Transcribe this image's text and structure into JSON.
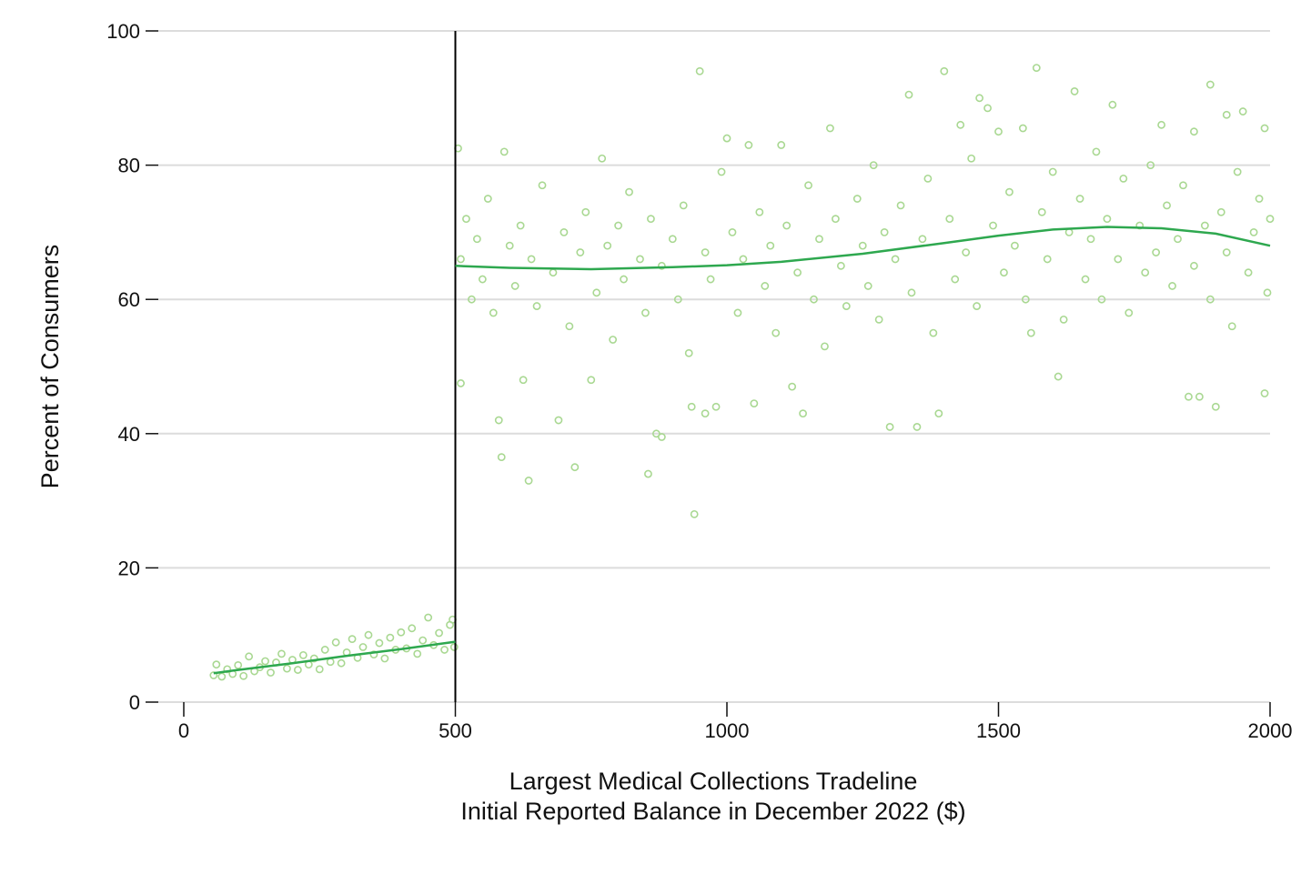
{
  "chart_data": {
    "type": "scatter",
    "title": "",
    "xlabel": "Largest Medical Collections Tradeline",
    "xlabel2": "Initial Reported Balance in December 2022 ($)",
    "ylabel": "Percent of Consumers",
    "xlim": [
      0,
      2000
    ],
    "ylim": [
      0,
      100
    ],
    "xticks": [
      "0",
      "500",
      "1000",
      "1500",
      "2000"
    ],
    "yticks": [
      "0",
      "20",
      "40",
      "60",
      "80",
      "100"
    ],
    "grid": "horizontal",
    "cutoff": 500,
    "colors": {
      "points": "#a9d892",
      "fit": "#2ea84f",
      "cutoff": "#000000",
      "grid": "#dcdcdc"
    },
    "fit_left": [
      [
        55,
        4.3
      ],
      [
        100,
        4.8
      ],
      [
        200,
        5.8
      ],
      [
        300,
        6.9
      ],
      [
        400,
        7.9
      ],
      [
        500,
        9.0
      ]
    ],
    "fit_right": [
      [
        500,
        65.0
      ],
      [
        600,
        64.7
      ],
      [
        750,
        64.5
      ],
      [
        900,
        64.8
      ],
      [
        1000,
        65.1
      ],
      [
        1100,
        65.6
      ],
      [
        1250,
        66.8
      ],
      [
        1400,
        68.4
      ],
      [
        1500,
        69.5
      ],
      [
        1600,
        70.4
      ],
      [
        1700,
        70.8
      ],
      [
        1800,
        70.6
      ],
      [
        1900,
        69.8
      ],
      [
        2000,
        68.0
      ]
    ],
    "points": [
      [
        55,
        4.0
      ],
      [
        60,
        5.6
      ],
      [
        70,
        3.8
      ],
      [
        80,
        4.9
      ],
      [
        90,
        4.2
      ],
      [
        100,
        5.5
      ],
      [
        110,
        3.9
      ],
      [
        120,
        6.8
      ],
      [
        130,
        4.6
      ],
      [
        140,
        5.2
      ],
      [
        150,
        6.1
      ],
      [
        160,
        4.4
      ],
      [
        170,
        5.9
      ],
      [
        180,
        7.2
      ],
      [
        190,
        5.0
      ],
      [
        200,
        6.3
      ],
      [
        210,
        4.8
      ],
      [
        220,
        7.0
      ],
      [
        230,
        5.6
      ],
      [
        240,
        6.5
      ],
      [
        250,
        4.9
      ],
      [
        260,
        7.8
      ],
      [
        270,
        6.0
      ],
      [
        280,
        8.9
      ],
      [
        290,
        5.8
      ],
      [
        300,
        7.4
      ],
      [
        310,
        9.4
      ],
      [
        320,
        6.6
      ],
      [
        330,
        8.2
      ],
      [
        340,
        10.0
      ],
      [
        350,
        7.1
      ],
      [
        360,
        8.8
      ],
      [
        370,
        6.5
      ],
      [
        380,
        9.6
      ],
      [
        390,
        7.8
      ],
      [
        400,
        10.4
      ],
      [
        410,
        8.0
      ],
      [
        420,
        11.0
      ],
      [
        430,
        7.2
      ],
      [
        440,
        9.2
      ],
      [
        450,
        12.6
      ],
      [
        460,
        8.5
      ],
      [
        470,
        10.3
      ],
      [
        480,
        7.8
      ],
      [
        490,
        11.5
      ],
      [
        495,
        12.3
      ],
      [
        498,
        8.2
      ],
      [
        505,
        82.5
      ],
      [
        590,
        82
      ],
      [
        770,
        81
      ],
      [
        1000,
        84
      ],
      [
        1040,
        83
      ],
      [
        1100,
        83
      ],
      [
        1190,
        85.5
      ],
      [
        1430,
        86
      ],
      [
        1500,
        85
      ],
      [
        1545,
        85.5
      ],
      [
        1480,
        88.5
      ],
      [
        1800,
        86
      ],
      [
        1920,
        87.5
      ],
      [
        1950,
        88
      ],
      [
        1990,
        85.5
      ],
      [
        1860,
        85
      ],
      [
        950,
        94
      ],
      [
        1400,
        94
      ],
      [
        1570,
        94.5
      ],
      [
        1335,
        90.5
      ],
      [
        1640,
        91
      ],
      [
        1890,
        92
      ],
      [
        1465,
        90
      ],
      [
        1710,
        89
      ],
      [
        940,
        28
      ],
      [
        635,
        33
      ],
      [
        855,
        34
      ],
      [
        585,
        36.5
      ],
      [
        720,
        35
      ],
      [
        580,
        42
      ],
      [
        870,
        40
      ],
      [
        880,
        39.5
      ],
      [
        690,
        42
      ],
      [
        1300,
        41
      ],
      [
        1350,
        41
      ],
      [
        1390,
        43
      ],
      [
        1140,
        43
      ],
      [
        1900,
        44
      ],
      [
        1870,
        45.5
      ],
      [
        1850,
        45.5
      ],
      [
        1990,
        46
      ],
      [
        510,
        47.5
      ],
      [
        935,
        44
      ],
      [
        960,
        43
      ],
      [
        980,
        44
      ],
      [
        1050,
        44.5
      ],
      [
        625,
        48
      ],
      [
        750,
        48
      ],
      [
        1120,
        47
      ],
      [
        1610,
        48.5
      ],
      [
        1560,
        55
      ],
      [
        510,
        66
      ],
      [
        520,
        72
      ],
      [
        530,
        60
      ],
      [
        540,
        69
      ],
      [
        550,
        63
      ],
      [
        560,
        75
      ],
      [
        570,
        58
      ],
      [
        600,
        68
      ],
      [
        610,
        62
      ],
      [
        620,
        71
      ],
      [
        640,
        66
      ],
      [
        650,
        59
      ],
      [
        660,
        77
      ],
      [
        680,
        64
      ],
      [
        700,
        70
      ],
      [
        710,
        56
      ],
      [
        730,
        67
      ],
      [
        740,
        73
      ],
      [
        760,
        61
      ],
      [
        780,
        68
      ],
      [
        790,
        54
      ],
      [
        800,
        71
      ],
      [
        810,
        63
      ],
      [
        820,
        76
      ],
      [
        840,
        66
      ],
      [
        850,
        58
      ],
      [
        860,
        72
      ],
      [
        880,
        65
      ],
      [
        900,
        69
      ],
      [
        910,
        60
      ],
      [
        920,
        74
      ],
      [
        930,
        52
      ],
      [
        960,
        67
      ],
      [
        970,
        63
      ],
      [
        990,
        79
      ],
      [
        1010,
        70
      ],
      [
        1020,
        58
      ],
      [
        1030,
        66
      ],
      [
        1060,
        73
      ],
      [
        1070,
        62
      ],
      [
        1080,
        68
      ],
      [
        1090,
        55
      ],
      [
        1110,
        71
      ],
      [
        1130,
        64
      ],
      [
        1150,
        77
      ],
      [
        1160,
        60
      ],
      [
        1170,
        69
      ],
      [
        1180,
        53
      ],
      [
        1200,
        72
      ],
      [
        1210,
        65
      ],
      [
        1220,
        59
      ],
      [
        1240,
        75
      ],
      [
        1250,
        68
      ],
      [
        1260,
        62
      ],
      [
        1270,
        80
      ],
      [
        1280,
        57
      ],
      [
        1290,
        70
      ],
      [
        1310,
        66
      ],
      [
        1320,
        74
      ],
      [
        1340,
        61
      ],
      [
        1360,
        69
      ],
      [
        1370,
        78
      ],
      [
        1380,
        55
      ],
      [
        1410,
        72
      ],
      [
        1420,
        63
      ],
      [
        1440,
        67
      ],
      [
        1450,
        81
      ],
      [
        1460,
        59
      ],
      [
        1490,
        71
      ],
      [
        1510,
        64
      ],
      [
        1520,
        76
      ],
      [
        1530,
        68
      ],
      [
        1550,
        60
      ],
      [
        1580,
        73
      ],
      [
        1590,
        66
      ],
      [
        1600,
        79
      ],
      [
        1620,
        57
      ],
      [
        1630,
        70
      ],
      [
        1650,
        75
      ],
      [
        1660,
        63
      ],
      [
        1670,
        69
      ],
      [
        1680,
        82
      ],
      [
        1690,
        60
      ],
      [
        1700,
        72
      ],
      [
        1720,
        66
      ],
      [
        1730,
        78
      ],
      [
        1740,
        58
      ],
      [
        1760,
        71
      ],
      [
        1770,
        64
      ],
      [
        1780,
        80
      ],
      [
        1790,
        67
      ],
      [
        1810,
        74
      ],
      [
        1820,
        62
      ],
      [
        1830,
        69
      ],
      [
        1840,
        77
      ],
      [
        1860,
        65
      ],
      [
        1880,
        71
      ],
      [
        1890,
        60
      ],
      [
        1910,
        73
      ],
      [
        1920,
        67
      ],
      [
        1930,
        56
      ],
      [
        1940,
        79
      ],
      [
        1960,
        64
      ],
      [
        1970,
        70
      ],
      [
        1980,
        75
      ],
      [
        1995,
        61
      ],
      [
        2000,
        72
      ]
    ]
  }
}
